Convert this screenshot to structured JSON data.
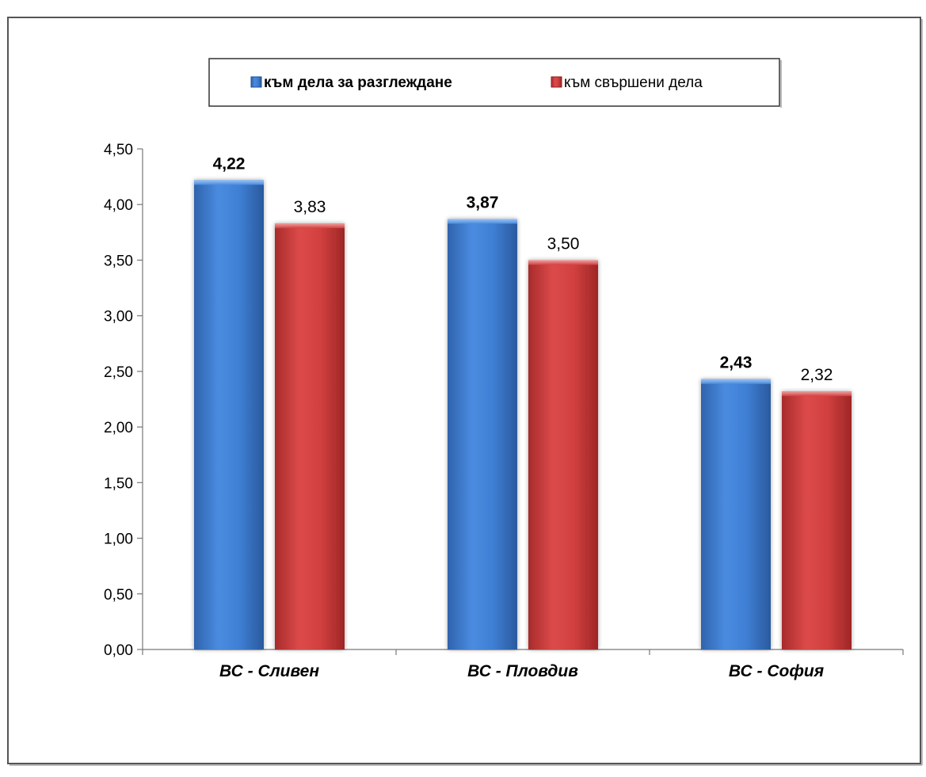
{
  "chart_data": {
    "type": "bar",
    "categories": [
      "ВС - Сливен",
      "ВС - Пловдив",
      "ВС - София"
    ],
    "series": [
      {
        "name": "към дела за разглеждане",
        "values": [
          4.22,
          3.87,
          2.43
        ],
        "value_labels": [
          "4,22",
          "3,87",
          "2,43"
        ],
        "color": "#3a78c9",
        "label_bold": true
      },
      {
        "name": "към свършени дела",
        "values": [
          3.83,
          3.5,
          2.32
        ],
        "value_labels": [
          "3,83",
          "3,50",
          "2,32"
        ],
        "color": "#cc3a3a",
        "label_bold": false
      }
    ],
    "ylim": [
      0,
      4.5
    ],
    "yticks": [
      0,
      0.5,
      1,
      1.5,
      2,
      2.5,
      3,
      3.5,
      4,
      4.5
    ],
    "ytick_labels": [
      "0,00",
      "0,50",
      "1,00",
      "1,50",
      "2,00",
      "2,50",
      "3,00",
      "3,50",
      "4,00",
      "4,50"
    ],
    "title": "",
    "xlabel": "",
    "ylabel": "",
    "grid": false,
    "legend_position": "top-center"
  }
}
